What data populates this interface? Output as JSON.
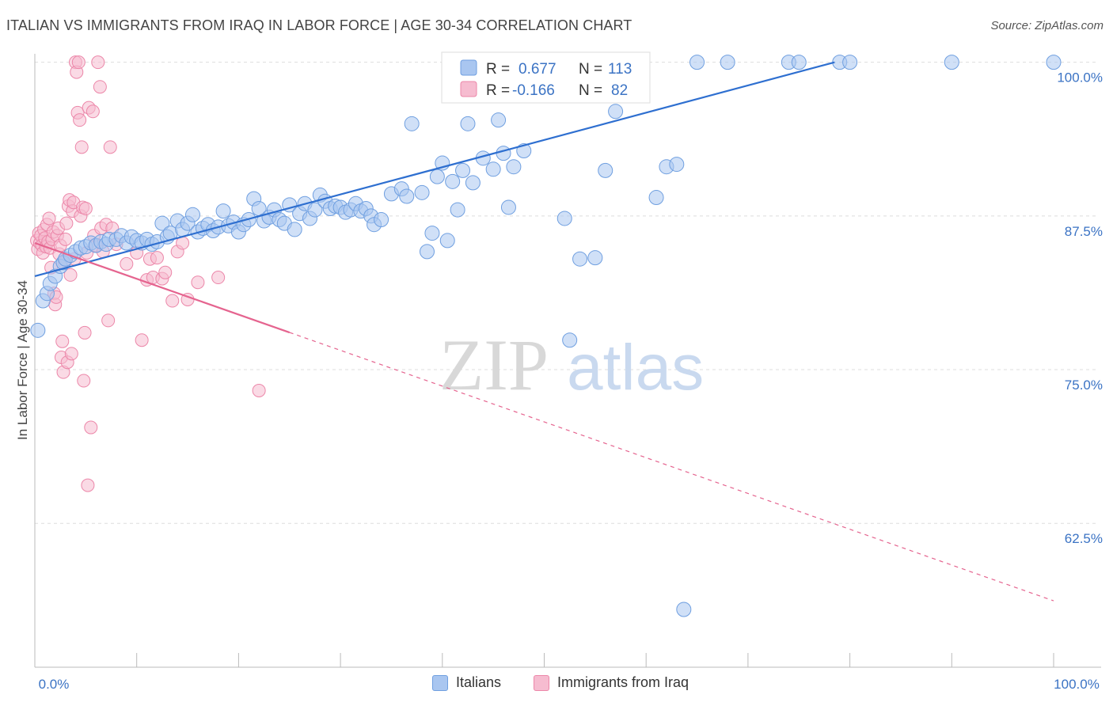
{
  "title": "ITALIAN VS IMMIGRANTS FROM IRAQ IN LABOR FORCE | AGE 30-34 CORRELATION CHART",
  "source": "Source: ZipAtlas.com",
  "watermark": {
    "zip": "ZIP",
    "atlas": "atlas"
  },
  "colors": {
    "blue_fill": "#a9c6f0",
    "blue_stroke": "#6f9fe0",
    "blue_line": "#2e6fd0",
    "pink_fill": "#f6bcd0",
    "pink_stroke": "#ec87a9",
    "pink_line": "#e5648f",
    "grid": "#dddddd",
    "axis_text": "#3b73c4"
  },
  "legend": {
    "r_label": "R =",
    "n_label": "N =",
    "italians": {
      "r": "0.677",
      "n": "113"
    },
    "iraq": {
      "r": "-0.166",
      "n": "82"
    }
  },
  "bottom_legend": {
    "italians": "Italians",
    "iraq": "Immigrants from Iraq"
  },
  "chart_data": {
    "type": "scatter",
    "title": "ITALIAN VS IMMIGRANTS FROM IRAQ IN LABOR FORCE | AGE 30-34 CORRELATION CHART",
    "xlabel": "",
    "ylabel": "In Labor Force | Age 30-34",
    "x_tick_labels": [
      "0.0%",
      "100.0%"
    ],
    "y_tick_labels": [
      "100.0%",
      "87.5%",
      "75.0%",
      "62.5%"
    ],
    "y_ticks": [
      100.0,
      87.5,
      75.0,
      62.5
    ],
    "xlim": [
      0,
      100
    ],
    "ylim": [
      50.8,
      101.2
    ],
    "grid": true,
    "legend_position": "top-center",
    "series": [
      {
        "name": "Italians",
        "r": 0.677,
        "n": 113,
        "trend": {
          "x": [
            0,
            78.5
          ],
          "y": [
            82.6,
            100.0
          ],
          "style": "solid"
        },
        "points": [
          [
            0.3,
            78.2
          ],
          [
            0.8,
            80.6
          ],
          [
            1.2,
            81.2
          ],
          [
            1.5,
            82.0
          ],
          [
            2.0,
            82.6
          ],
          [
            2.5,
            83.4
          ],
          [
            2.8,
            83.7
          ],
          [
            3.0,
            84.0
          ],
          [
            3.5,
            84.3
          ],
          [
            4.0,
            84.6
          ],
          [
            4.5,
            84.9
          ],
          [
            5.0,
            85.0
          ],
          [
            5.5,
            85.3
          ],
          [
            6.0,
            85.1
          ],
          [
            6.5,
            85.4
          ],
          [
            7.0,
            85.2
          ],
          [
            7.3,
            85.6
          ],
          [
            8.0,
            85.6
          ],
          [
            8.5,
            85.9
          ],
          [
            9.0,
            85.3
          ],
          [
            9.5,
            85.8
          ],
          [
            10.0,
            85.5
          ],
          [
            10.5,
            85.3
          ],
          [
            11.0,
            85.6
          ],
          [
            11.5,
            85.2
          ],
          [
            12.0,
            85.4
          ],
          [
            12.5,
            86.9
          ],
          [
            13.0,
            85.8
          ],
          [
            13.3,
            86.1
          ],
          [
            14.0,
            87.1
          ],
          [
            14.5,
            86.4
          ],
          [
            15.0,
            86.9
          ],
          [
            15.5,
            87.6
          ],
          [
            16.0,
            86.2
          ],
          [
            16.5,
            86.5
          ],
          [
            17.0,
            86.8
          ],
          [
            17.5,
            86.3
          ],
          [
            18.0,
            86.6
          ],
          [
            18.5,
            87.9
          ],
          [
            19.0,
            86.7
          ],
          [
            19.5,
            87.0
          ],
          [
            20.0,
            86.2
          ],
          [
            20.5,
            86.8
          ],
          [
            21.0,
            87.2
          ],
          [
            21.5,
            88.9
          ],
          [
            22.0,
            88.1
          ],
          [
            22.5,
            87.1
          ],
          [
            23.0,
            87.4
          ],
          [
            23.5,
            88.0
          ],
          [
            24.0,
            87.2
          ],
          [
            24.5,
            86.9
          ],
          [
            25.0,
            88.4
          ],
          [
            25.5,
            86.4
          ],
          [
            26.0,
            87.7
          ],
          [
            26.5,
            88.5
          ],
          [
            27.0,
            87.3
          ],
          [
            27.5,
            88.0
          ],
          [
            28.0,
            89.2
          ],
          [
            28.5,
            88.7
          ],
          [
            29.0,
            88.1
          ],
          [
            29.5,
            88.3
          ],
          [
            30.0,
            88.2
          ],
          [
            30.5,
            87.8
          ],
          [
            31.0,
            88.0
          ],
          [
            31.5,
            88.5
          ],
          [
            32.0,
            87.9
          ],
          [
            32.5,
            88.1
          ],
          [
            33.0,
            87.5
          ],
          [
            33.3,
            86.8
          ],
          [
            34.0,
            87.2
          ],
          [
            35.0,
            89.3
          ],
          [
            36.0,
            89.7
          ],
          [
            36.5,
            89.1
          ],
          [
            37.0,
            95.0
          ],
          [
            38.0,
            89.4
          ],
          [
            38.5,
            84.6
          ],
          [
            39.0,
            86.1
          ],
          [
            39.5,
            90.7
          ],
          [
            40.0,
            91.8
          ],
          [
            40.5,
            85.5
          ],
          [
            41.0,
            90.3
          ],
          [
            41.5,
            88.0
          ],
          [
            42.0,
            91.2
          ],
          [
            42.5,
            95.0
          ],
          [
            43.0,
            90.2
          ],
          [
            44.0,
            92.2
          ],
          [
            45.0,
            91.3
          ],
          [
            45.5,
            95.3
          ],
          [
            46.0,
            92.6
          ],
          [
            46.5,
            88.2
          ],
          [
            47.0,
            91.5
          ],
          [
            48.0,
            92.8
          ],
          [
            49.0,
            100.0
          ],
          [
            50.0,
            100.0
          ],
          [
            52.0,
            87.3
          ],
          [
            52.5,
            77.4
          ],
          [
            53.5,
            84.0
          ],
          [
            55.0,
            84.1
          ],
          [
            56.0,
            91.2
          ],
          [
            57.0,
            96.0
          ],
          [
            59.0,
            100.0
          ],
          [
            61.0,
            89.0
          ],
          [
            62.0,
            91.5
          ],
          [
            63.0,
            91.7
          ],
          [
            63.7,
            55.5
          ],
          [
            65.0,
            100.0
          ],
          [
            68.0,
            100.0
          ],
          [
            74.0,
            100.0
          ],
          [
            75.0,
            100.0
          ],
          [
            79.0,
            100.0
          ],
          [
            80.0,
            100.0
          ],
          [
            90.0,
            100.0
          ],
          [
            100.0,
            100.0
          ]
        ]
      },
      {
        "name": "Immigrants from Iraq",
        "r": -0.166,
        "n": 82,
        "trend": {
          "x": [
            0,
            100
          ],
          "y": [
            85.3,
            56.2
          ],
          "style": "solid-then-dashed",
          "solid_until_x": 25
        },
        "points": [
          [
            0.2,
            85.5
          ],
          [
            0.3,
            84.8
          ],
          [
            0.4,
            86.1
          ],
          [
            0.5,
            85.3
          ],
          [
            0.6,
            85.9
          ],
          [
            0.7,
            85.1
          ],
          [
            0.8,
            84.5
          ],
          [
            0.9,
            86.4
          ],
          [
            1.0,
            85.7
          ],
          [
            1.1,
            85.0
          ],
          [
            1.2,
            86.8
          ],
          [
            1.3,
            85.4
          ],
          [
            1.4,
            87.3
          ],
          [
            1.5,
            84.9
          ],
          [
            1.6,
            83.3
          ],
          [
            1.7,
            85.6
          ],
          [
            1.8,
            86.2
          ],
          [
            1.9,
            81.2
          ],
          [
            2.0,
            80.3
          ],
          [
            2.1,
            80.9
          ],
          [
            2.2,
            85.9
          ],
          [
            2.3,
            86.5
          ],
          [
            2.4,
            84.4
          ],
          [
            2.5,
            85.1
          ],
          [
            2.6,
            76.0
          ],
          [
            2.7,
            77.3
          ],
          [
            2.8,
            74.8
          ],
          [
            2.9,
            83.7
          ],
          [
            3.0,
            85.6
          ],
          [
            3.1,
            86.9
          ],
          [
            3.2,
            75.6
          ],
          [
            3.3,
            88.3
          ],
          [
            3.4,
            88.8
          ],
          [
            3.5,
            82.7
          ],
          [
            3.6,
            76.3
          ],
          [
            3.7,
            87.9
          ],
          [
            3.8,
            88.6
          ],
          [
            3.9,
            84.0
          ],
          [
            4.0,
            100.0
          ],
          [
            4.1,
            99.2
          ],
          [
            4.2,
            95.9
          ],
          [
            4.3,
            100.0
          ],
          [
            4.4,
            95.3
          ],
          [
            4.5,
            87.5
          ],
          [
            4.6,
            93.1
          ],
          [
            4.7,
            88.2
          ],
          [
            4.8,
            74.1
          ],
          [
            4.9,
            78.0
          ],
          [
            5.0,
            88.1
          ],
          [
            5.1,
            84.5
          ],
          [
            5.3,
            96.3
          ],
          [
            5.5,
            70.3
          ],
          [
            5.7,
            96.0
          ],
          [
            5.8,
            85.9
          ],
          [
            6.0,
            85.1
          ],
          [
            6.2,
            100.0
          ],
          [
            6.4,
            98.0
          ],
          [
            6.5,
            86.5
          ],
          [
            6.7,
            84.6
          ],
          [
            7.0,
            86.8
          ],
          [
            7.2,
            79.0
          ],
          [
            7.4,
            93.1
          ],
          [
            7.6,
            86.5
          ],
          [
            8.0,
            85.2
          ],
          [
            9.0,
            83.6
          ],
          [
            10.0,
            84.5
          ],
          [
            10.5,
            77.4
          ],
          [
            11.0,
            82.3
          ],
          [
            11.3,
            84.0
          ],
          [
            11.6,
            82.5
          ],
          [
            12.0,
            84.1
          ],
          [
            12.5,
            82.4
          ],
          [
            12.8,
            82.9
          ],
          [
            13.5,
            80.6
          ],
          [
            14.0,
            84.6
          ],
          [
            14.5,
            85.3
          ],
          [
            15.0,
            80.7
          ],
          [
            16.0,
            82.1
          ],
          [
            18.0,
            82.5
          ],
          [
            22.0,
            73.3
          ],
          [
            5.2,
            65.6
          ],
          [
            3.0,
            83.9
          ]
        ]
      }
    ]
  }
}
